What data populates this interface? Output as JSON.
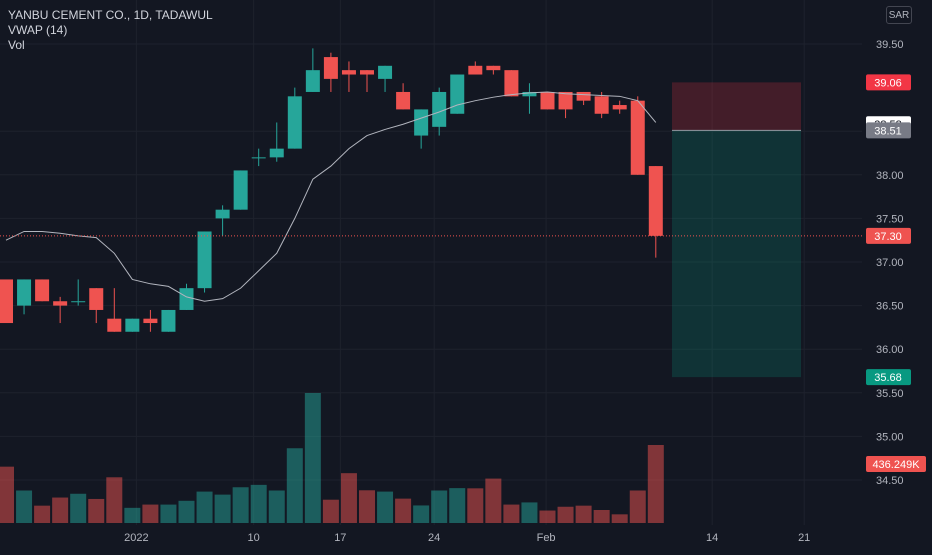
{
  "legend": {
    "title": "YANBU CEMENT CO., 1D, TADAWUL",
    "indicator": "VWAP (14)",
    "volume": "Vol"
  },
  "currency": "SAR",
  "colors": {
    "background": "#131722",
    "up": "#26a69a",
    "down": "#ef5350",
    "vwap": "#b2b5be",
    "grid": "#1e222d",
    "axis_text": "#b2b5be"
  },
  "chart_data": {
    "type": "candlestick",
    "title": "YANBU CEMENT CO., 1D, TADAWUL",
    "ylim": [
      33.9,
      39.95
    ],
    "y_ticks": [
      "39.50",
      "38.50",
      "38.00",
      "37.50",
      "37.00",
      "36.50",
      "36.00",
      "35.50",
      "35.00",
      "34.50"
    ],
    "x_ticks": [
      "2022",
      "10",
      "17",
      "24",
      "Feb",
      "14",
      "21"
    ],
    "grid": true,
    "candles": [
      {
        "o": 36.8,
        "h": 36.8,
        "l": 36.3,
        "c": 36.3
      },
      {
        "o": 36.5,
        "h": 36.8,
        "l": 36.4,
        "c": 36.8
      },
      {
        "o": 36.8,
        "h": 36.8,
        "l": 36.55,
        "c": 36.55
      },
      {
        "o": 36.55,
        "h": 36.6,
        "l": 36.3,
        "c": 36.5
      },
      {
        "o": 36.55,
        "h": 36.8,
        "l": 36.5,
        "c": 36.55
      },
      {
        "o": 36.7,
        "h": 36.7,
        "l": 36.3,
        "c": 36.45
      },
      {
        "o": 36.35,
        "h": 36.7,
        "l": 36.2,
        "c": 36.2
      },
      {
        "o": 36.2,
        "h": 36.35,
        "l": 36.2,
        "c": 36.35
      },
      {
        "o": 36.35,
        "h": 36.45,
        "l": 36.2,
        "c": 36.3
      },
      {
        "o": 36.2,
        "h": 36.45,
        "l": 36.2,
        "c": 36.45
      },
      {
        "o": 36.45,
        "h": 36.75,
        "l": 36.45,
        "c": 36.7
      },
      {
        "o": 36.7,
        "h": 37.35,
        "l": 36.65,
        "c": 37.35
      },
      {
        "o": 37.5,
        "h": 37.65,
        "l": 37.3,
        "c": 37.6
      },
      {
        "o": 37.6,
        "h": 38.05,
        "l": 37.6,
        "c": 38.05
      },
      {
        "o": 38.2,
        "h": 38.3,
        "l": 38.1,
        "c": 38.2
      },
      {
        "o": 38.2,
        "h": 38.6,
        "l": 38.15,
        "c": 38.3
      },
      {
        "o": 38.3,
        "h": 39.0,
        "l": 38.3,
        "c": 38.9
      },
      {
        "o": 38.95,
        "h": 39.45,
        "l": 38.95,
        "c": 39.2
      },
      {
        "o": 39.35,
        "h": 39.4,
        "l": 38.95,
        "c": 39.1
      },
      {
        "o": 39.2,
        "h": 39.3,
        "l": 38.95,
        "c": 39.15
      },
      {
        "o": 39.2,
        "h": 39.2,
        "l": 38.95,
        "c": 39.15
      },
      {
        "o": 39.1,
        "h": 39.25,
        "l": 38.95,
        "c": 39.25
      },
      {
        "o": 38.95,
        "h": 39.05,
        "l": 38.75,
        "c": 38.75
      },
      {
        "o": 38.45,
        "h": 38.75,
        "l": 38.3,
        "c": 38.75
      },
      {
        "o": 38.55,
        "h": 39.0,
        "l": 38.45,
        "c": 38.95
      },
      {
        "o": 38.7,
        "h": 39.15,
        "l": 38.7,
        "c": 39.15
      },
      {
        "o": 39.25,
        "h": 39.3,
        "l": 39.15,
        "c": 39.15
      },
      {
        "o": 39.25,
        "h": 39.25,
        "l": 39.15,
        "c": 39.2
      },
      {
        "o": 39.2,
        "h": 39.2,
        "l": 38.9,
        "c": 38.9
      },
      {
        "o": 38.9,
        "h": 39.05,
        "l": 38.7,
        "c": 38.95
      },
      {
        "o": 38.95,
        "h": 38.95,
        "l": 38.75,
        "c": 38.75
      },
      {
        "o": 38.95,
        "h": 38.95,
        "l": 38.65,
        "c": 38.75
      },
      {
        "o": 38.95,
        "h": 38.95,
        "l": 38.8,
        "c": 38.85
      },
      {
        "o": 38.9,
        "h": 38.95,
        "l": 38.65,
        "c": 38.7
      },
      {
        "o": 38.8,
        "h": 38.85,
        "l": 38.7,
        "c": 38.75
      },
      {
        "o": 38.85,
        "h": 38.9,
        "l": 38.0,
        "c": 38.0
      },
      {
        "o": 38.1,
        "h": 38.1,
        "l": 37.05,
        "c": 37.3
      }
    ],
    "vwap": [
      37.25,
      37.35,
      37.35,
      37.33,
      37.3,
      37.28,
      37.1,
      36.8,
      36.75,
      36.72,
      36.6,
      36.55,
      36.58,
      36.7,
      36.9,
      37.1,
      37.5,
      37.95,
      38.1,
      38.3,
      38.45,
      38.52,
      38.58,
      38.65,
      38.72,
      38.8,
      38.85,
      38.89,
      38.92,
      38.94,
      38.95,
      38.93,
      38.92,
      38.91,
      38.9,
      38.85,
      38.6
    ],
    "volume": [
      520,
      300,
      160,
      235,
      270,
      222,
      422,
      140,
      170,
      170,
      205,
      290,
      262,
      330,
      352,
      300,
      690,
      1200,
      215,
      460,
      302,
      290,
      225,
      162,
      300,
      322,
      320,
      410,
      170,
      190,
      115,
      150,
      160,
      120,
      80,
      300,
      720
    ],
    "volume_label": "436.249K",
    "position": {
      "target": 35.68,
      "entry": 38.51,
      "stop": 39.06,
      "target_label": "35.68",
      "entry_label": "38.51",
      "stop_label": "39.06"
    },
    "last_price_label": "37.30",
    "vwap_label": "38.58"
  }
}
